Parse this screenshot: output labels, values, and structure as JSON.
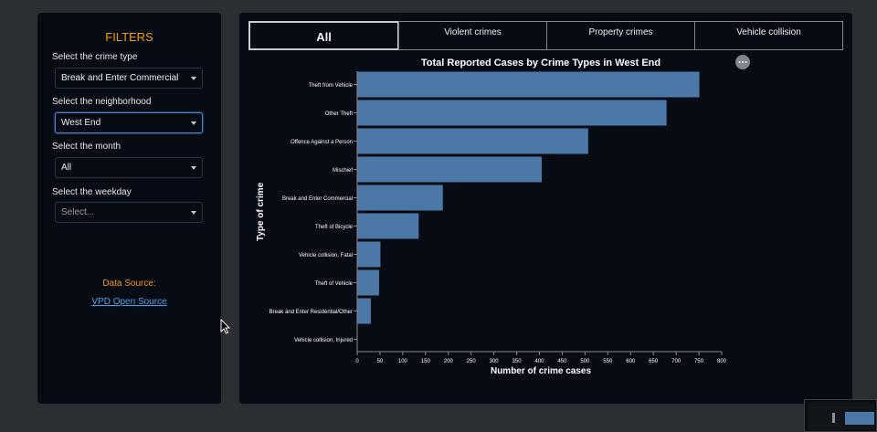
{
  "sidebar": {
    "title": "FILTERS",
    "crime_type": {
      "label": "Select the crime type",
      "value": "Break and Enter Commercial"
    },
    "neighborhood": {
      "label": "Select the neighborhood",
      "value": "West End"
    },
    "month": {
      "label": "Select the month",
      "value": "All"
    },
    "weekday": {
      "label": "Select the weekday",
      "placeholder": "Select..."
    },
    "data_source_label": "Data Source:",
    "data_source_link": "VPD Open Source"
  },
  "tabs": [
    {
      "label": "All",
      "active": true
    },
    {
      "label": "Violent crimes",
      "active": false
    },
    {
      "label": "Property crimes",
      "active": false
    },
    {
      "label": "Vehicle collision",
      "active": false
    }
  ],
  "menu_icon": "ellipsis-icon",
  "chart_data": {
    "type": "bar",
    "orientation": "horizontal",
    "title": "Total Reported Cases by Crime Types in West End",
    "xlabel": "Number of crime cases",
    "ylabel": "Type of crime",
    "xlim": [
      0,
      800
    ],
    "xticks": [
      0,
      50,
      100,
      150,
      200,
      250,
      300,
      350,
      400,
      450,
      500,
      550,
      600,
      650,
      700,
      750,
      800
    ],
    "categories": [
      "Theft from Vehicle",
      "Other Theft",
      "Offence Against a Person",
      "Mischief",
      "Break and Enter Commercial",
      "Theft of Bicycle",
      "Vehicle collision, Fatal",
      "Theft of Vehicle",
      "Break and Enter Residential/Other",
      "Vehicle collision, Injured"
    ],
    "values": [
      750,
      678,
      506,
      404,
      187,
      134,
      50,
      47,
      29,
      0
    ],
    "color": "#4c78a8",
    "grid": false
  }
}
